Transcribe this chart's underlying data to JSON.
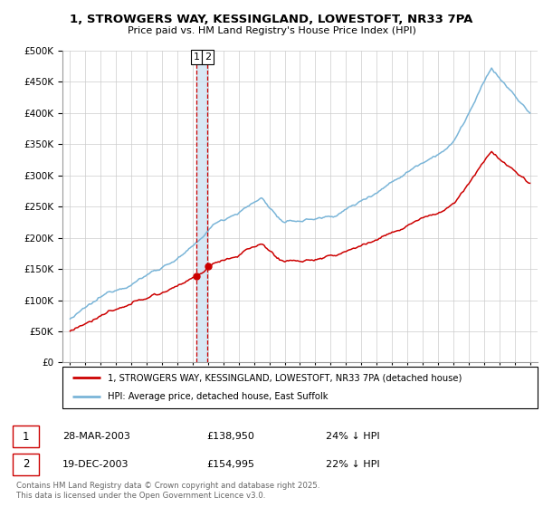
{
  "title1": "1, STROWGERS WAY, KESSINGLAND, LOWESTOFT, NR33 7PA",
  "title2": "Price paid vs. HM Land Registry's House Price Index (HPI)",
  "legend_line1": "1, STROWGERS WAY, KESSINGLAND, LOWESTOFT, NR33 7PA (detached house)",
  "legend_line2": "HPI: Average price, detached house, East Suffolk",
  "sale1_date": "28-MAR-2003",
  "sale1_price": "£138,950",
  "sale1_hpi": "24% ↓ HPI",
  "sale2_date": "19-DEC-2003",
  "sale2_price": "£154,995",
  "sale2_hpi": "22% ↓ HPI",
  "footer": "Contains HM Land Registry data © Crown copyright and database right 2025.\nThis data is licensed under the Open Government Licence v3.0.",
  "hpi_color": "#7ab5d8",
  "price_color": "#cc0000",
  "vline_color": "#cc0000",
  "vband_color": "#c8dff0",
  "grid_color": "#cccccc",
  "ylim": [
    0,
    500000
  ],
  "yticks": [
    0,
    50000,
    100000,
    150000,
    200000,
    250000,
    300000,
    350000,
    400000,
    450000,
    500000
  ],
  "year_start": 1995,
  "year_end": 2025,
  "sale1_year": 2003.23,
  "sale2_year": 2003.96,
  "sale1_value": 138950,
  "sale2_value": 154995
}
